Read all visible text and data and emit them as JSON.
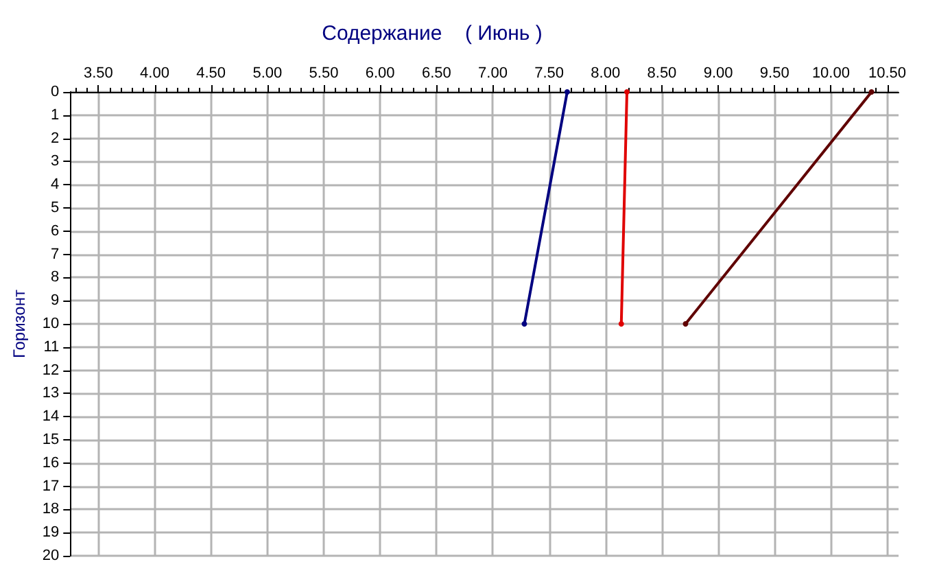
{
  "chart_data": {
    "type": "line",
    "title": "Содержание    ( Июнь )",
    "ylabel": "Горизонт",
    "xlim": [
      3.25,
      10.6
    ],
    "xticks": [
      {
        "value": 3.5,
        "label": "3.50"
      },
      {
        "value": 4,
        "label": "4.00"
      },
      {
        "value": 4.5,
        "label": "4.50"
      },
      {
        "value": 5,
        "label": "5.00"
      },
      {
        "value": 5.5,
        "label": "5.50"
      },
      {
        "value": 6,
        "label": "6.00"
      },
      {
        "value": 6.5,
        "label": "6.50"
      },
      {
        "value": 7,
        "label": "7.00"
      },
      {
        "value": 7.5,
        "label": "7.50"
      },
      {
        "value": 8,
        "label": "8.00"
      },
      {
        "value": 8.5,
        "label": "8.50"
      },
      {
        "value": 9,
        "label": "9.00"
      },
      {
        "value": 9.5,
        "label": "9.50"
      },
      {
        "value": 10,
        "label": "10.00"
      },
      {
        "value": 10.5,
        "label": "10.50"
      }
    ],
    "ylim": [
      20,
      0
    ],
    "yticks": [
      0,
      1,
      2,
      3,
      4,
      5,
      6,
      7,
      8,
      9,
      10,
      11,
      12,
      13,
      14,
      15,
      16,
      17,
      18,
      19,
      20
    ],
    "grid": true,
    "marker": "circle",
    "line_style": "solid",
    "series": [
      {
        "color": "#000080",
        "x": [
          7.66,
          7.28
        ],
        "values": [
          0,
          10
        ]
      },
      {
        "color": "#e00000",
        "x": [
          8.19,
          8.14
        ],
        "values": [
          0,
          10
        ]
      },
      {
        "color": "#600000",
        "x": [
          10.36,
          8.71
        ],
        "values": [
          0,
          10
        ]
      }
    ]
  }
}
